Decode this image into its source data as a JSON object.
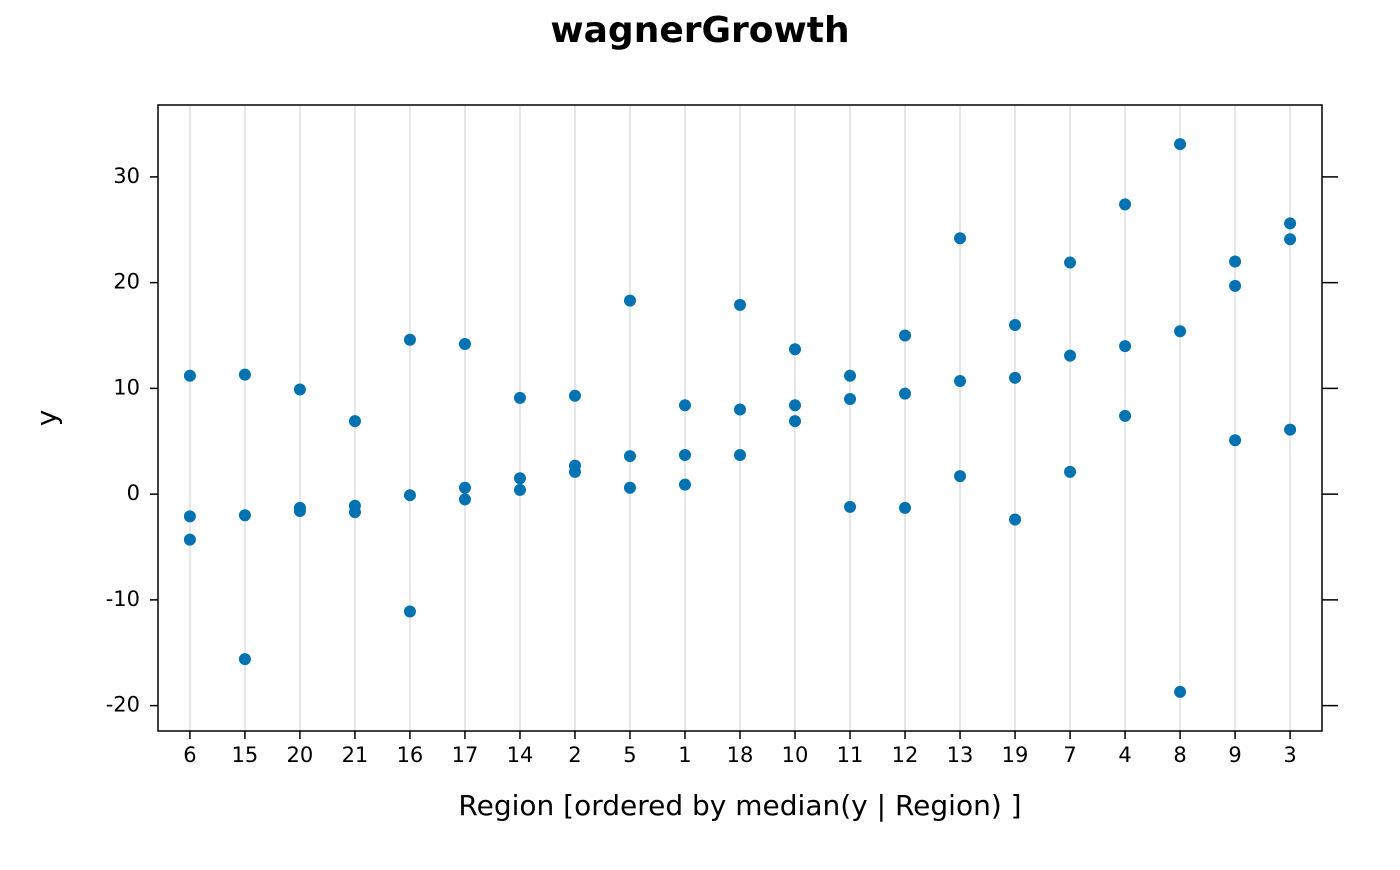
{
  "chart_data": {
    "type": "strip",
    "title": "wagnerGrowth",
    "x_label": "Region [ordered by  median(y | Region) ]",
    "y_label": "y",
    "color": "#0072b2",
    "grid": true,
    "categories": [
      "6",
      "15",
      "20",
      "21",
      "16",
      "17",
      "14",
      "2",
      "5",
      "1",
      "18",
      "10",
      "11",
      "12",
      "13",
      "19",
      "7",
      "4",
      "8",
      "9",
      "3"
    ],
    "values": [
      [
        11.2,
        -2.1,
        -4.3
      ],
      [
        11.3,
        -2.0,
        -15.6
      ],
      [
        9.9,
        -1.3,
        -1.6
      ],
      [
        6.9,
        -1.1,
        -1.7
      ],
      [
        14.6,
        -0.1,
        -11.1
      ],
      [
        14.2,
        0.6,
        -0.5
      ],
      [
        9.1,
        1.5,
        0.4
      ],
      [
        9.3,
        2.7,
        2.1
      ],
      [
        18.3,
        3.6,
        0.6
      ],
      [
        8.4,
        3.7,
        0.9
      ],
      [
        17.9,
        8.0,
        3.7
      ],
      [
        13.7,
        8.4,
        6.9
      ],
      [
        11.2,
        9.0,
        -1.2
      ],
      [
        15.0,
        9.5,
        -1.3
      ],
      [
        24.2,
        10.7,
        1.7
      ],
      [
        16.0,
        11.0,
        -2.4
      ],
      [
        21.9,
        13.1,
        2.1
      ],
      [
        27.4,
        14.0,
        7.4
      ],
      [
        33.1,
        15.4,
        -18.7
      ],
      [
        22.0,
        19.7,
        5.1
      ],
      [
        25.6,
        24.1,
        6.1
      ]
    ],
    "ylim": [
      -22.4,
      36.8
    ],
    "yticks": [
      -20,
      -10,
      0,
      10,
      20,
      30
    ]
  }
}
